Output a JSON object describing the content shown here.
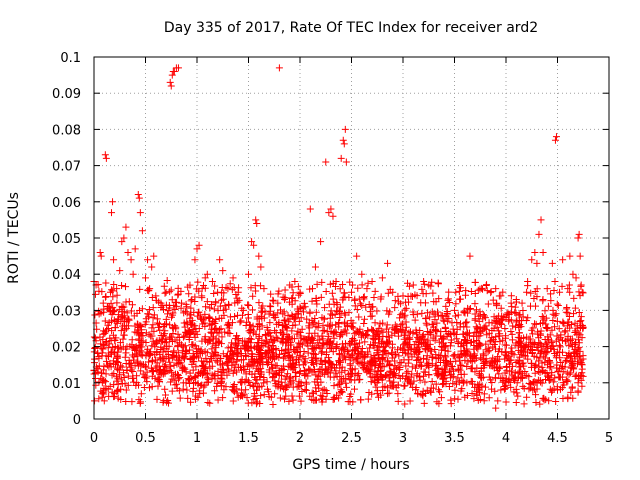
{
  "chart_data": {
    "type": "scatter",
    "title": "Day 335 of 2017, Rate Of TEC Index for receiver ard2",
    "xlabel": "GPS time / hours",
    "ylabel": "ROTI / TECUs",
    "xlim": [
      0,
      5
    ],
    "ylim": [
      0,
      0.1
    ],
    "x_ticks": [
      "0",
      "0.5",
      "1",
      "1.5",
      "2",
      "2.5",
      "3",
      "3.5",
      "4",
      "4.5",
      "5"
    ],
    "y_ticks": [
      "0",
      "0.01",
      "0.02",
      "0.03",
      "0.04",
      "0.05",
      "0.06",
      "0.07",
      "0.08",
      "0.09",
      "0.1"
    ],
    "grid": true,
    "legend": "none",
    "marker": "+",
    "color": "#ff0000",
    "series": [
      {
        "points": [
          [
            0.0,
            0.038
          ],
          [
            0.02,
            0.037
          ],
          [
            0.04,
            0.013
          ],
          [
            0.05,
            0.029
          ],
          [
            0.06,
            0.046
          ],
          [
            0.07,
            0.045
          ],
          [
            0.08,
            0.006
          ],
          [
            0.09,
            0.032
          ],
          [
            0.1,
            0.005
          ],
          [
            0.11,
            0.073
          ],
          [
            0.12,
            0.072
          ],
          [
            0.14,
            0.025
          ],
          [
            0.16,
            0.035
          ],
          [
            0.17,
            0.057
          ],
          [
            0.18,
            0.06
          ],
          [
            0.19,
            0.044
          ],
          [
            0.2,
            0.03
          ],
          [
            0.22,
            0.036
          ],
          [
            0.25,
            0.041
          ],
          [
            0.27,
            0.049
          ],
          [
            0.29,
            0.05
          ],
          [
            0.31,
            0.053
          ],
          [
            0.33,
            0.046
          ],
          [
            0.36,
            0.044
          ],
          [
            0.38,
            0.04
          ],
          [
            0.4,
            0.047
          ],
          [
            0.43,
            0.062
          ],
          [
            0.44,
            0.061
          ],
          [
            0.45,
            0.057
          ],
          [
            0.47,
            0.052
          ],
          [
            0.5,
            0.039
          ],
          [
            0.52,
            0.044
          ],
          [
            0.54,
            0.036
          ],
          [
            0.56,
            0.042
          ],
          [
            0.58,
            0.045
          ],
          [
            0.6,
            0.034
          ],
          [
            0.65,
            0.032
          ],
          [
            0.7,
            0.035
          ],
          [
            0.74,
            0.093
          ],
          [
            0.75,
            0.092
          ],
          [
            0.76,
            0.095
          ],
          [
            0.77,
            0.096
          ],
          [
            0.78,
            0.096
          ],
          [
            0.8,
            0.097
          ],
          [
            0.82,
            0.097
          ],
          [
            0.85,
            0.032
          ],
          [
            0.9,
            0.031
          ],
          [
            0.95,
            0.033
          ],
          [
            0.98,
            0.044
          ],
          [
            1.0,
            0.047
          ],
          [
            1.02,
            0.048
          ],
          [
            1.05,
            0.036
          ],
          [
            1.08,
            0.039
          ],
          [
            1.1,
            0.04
          ],
          [
            1.15,
            0.038
          ],
          [
            1.2,
            0.035
          ],
          [
            1.22,
            0.044
          ],
          [
            1.25,
            0.041
          ],
          [
            1.3,
            0.036
          ],
          [
            1.35,
            0.039
          ],
          [
            1.4,
            0.035
          ],
          [
            1.45,
            0.03
          ],
          [
            1.5,
            0.04
          ],
          [
            1.53,
            0.049
          ],
          [
            1.55,
            0.048
          ],
          [
            1.57,
            0.055
          ],
          [
            1.58,
            0.054
          ],
          [
            1.6,
            0.045
          ],
          [
            1.62,
            0.042
          ],
          [
            1.65,
            0.036
          ],
          [
            1.7,
            0.029
          ],
          [
            1.75,
            0.028
          ],
          [
            1.8,
            0.097
          ],
          [
            1.85,
            0.033
          ],
          [
            1.9,
            0.037
          ],
          [
            1.95,
            0.038
          ],
          [
            2.0,
            0.035
          ],
          [
            2.05,
            0.031
          ],
          [
            2.1,
            0.058
          ],
          [
            2.15,
            0.042
          ],
          [
            2.2,
            0.049
          ],
          [
            2.25,
            0.071
          ],
          [
            2.28,
            0.057
          ],
          [
            2.3,
            0.058
          ],
          [
            2.32,
            0.056
          ],
          [
            2.35,
            0.038
          ],
          [
            2.4,
            0.072
          ],
          [
            2.42,
            0.077
          ],
          [
            2.43,
            0.076
          ],
          [
            2.44,
            0.08
          ],
          [
            2.45,
            0.071
          ],
          [
            2.5,
            0.035
          ],
          [
            2.55,
            0.045
          ],
          [
            2.6,
            0.04
          ],
          [
            2.65,
            0.036
          ],
          [
            2.7,
            0.038
          ],
          [
            2.8,
            0.039
          ],
          [
            2.85,
            0.043
          ],
          [
            2.9,
            0.035
          ],
          [
            3.0,
            0.034
          ],
          [
            3.1,
            0.037
          ],
          [
            3.2,
            0.038
          ],
          [
            3.25,
            0.037
          ],
          [
            3.3,
            0.029
          ],
          [
            3.4,
            0.027
          ],
          [
            3.5,
            0.03
          ],
          [
            3.65,
            0.045
          ],
          [
            3.7,
            0.029
          ],
          [
            3.8,
            0.028
          ],
          [
            3.9,
            0.036
          ],
          [
            3.95,
            0.034
          ],
          [
            4.0,
            0.028
          ],
          [
            4.05,
            0.032
          ],
          [
            4.1,
            0.033
          ],
          [
            4.2,
            0.035
          ],
          [
            4.25,
            0.044
          ],
          [
            4.28,
            0.046
          ],
          [
            4.3,
            0.043
          ],
          [
            4.32,
            0.051
          ],
          [
            4.34,
            0.055
          ],
          [
            4.36,
            0.046
          ],
          [
            4.4,
            0.036
          ],
          [
            4.45,
            0.043
          ],
          [
            4.48,
            0.077
          ],
          [
            4.49,
            0.078
          ],
          [
            4.52,
            0.035
          ],
          [
            4.55,
            0.044
          ],
          [
            4.6,
            0.036
          ],
          [
            4.62,
            0.045
          ],
          [
            4.65,
            0.04
          ],
          [
            4.68,
            0.039
          ],
          [
            4.7,
            0.05
          ],
          [
            4.71,
            0.051
          ],
          [
            4.72,
            0.045
          ],
          [
            4.73,
            0.037
          ],
          [
            4.74,
            0.035
          ],
          [
            4.2,
            0.006
          ],
          [
            4.5,
            0.008
          ],
          [
            4.6,
            0.006
          ],
          [
            3.9,
            0.003
          ],
          [
            3.92,
            0.005
          ],
          [
            3.95,
            0.008
          ],
          [
            3.6,
            0.006
          ],
          [
            1.4,
            0.006
          ],
          [
            0.08,
            0.007
          ],
          [
            2.85,
            0.007
          ],
          [
            2.95,
            0.007
          ],
          [
            4.7,
            0.01
          ],
          [
            4.73,
            0.012
          ],
          [
            4.74,
            0.015
          ]
        ],
        "band": {
          "x_range": [
            0,
            4.75
          ],
          "n": 3000,
          "typical_low": 0.008,
          "typical_high": 0.038,
          "centre": 0.018,
          "note": "dense band of ROTI values between about 0.005 and 0.04 across the full time range"
        }
      }
    ]
  }
}
